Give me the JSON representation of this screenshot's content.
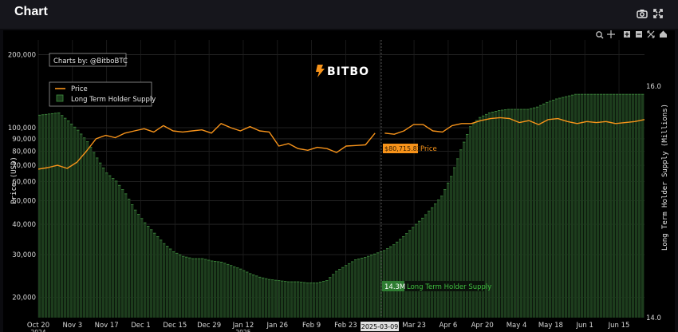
{
  "app": {
    "title": "Chart",
    "camera_icon": "camera-icon",
    "fullscreen_icon": "fullscreen-icon"
  },
  "toolbar": {
    "icons": [
      "zoom-icon",
      "pan-icon",
      "zoom-in-icon",
      "zoom-out-icon",
      "autoscale-icon",
      "home-icon"
    ]
  },
  "watermark": "BITBO",
  "credit": "Charts by: @BitboBTC",
  "legend": {
    "price": "Price",
    "supply": "Long Term Holder Supply"
  },
  "hover": {
    "x_label": "2025-03-09",
    "price_value": "$80,715.83",
    "price_name": "Price",
    "supply_value": "14.3M",
    "supply_name": "Long Term Holder Supply"
  },
  "colors": {
    "price": "#f7931a",
    "supply_fill": "#1d3d1d",
    "supply_line": "#3f8f3f",
    "label_bg": "#f7931a",
    "label_supply_bg": "#2e7d32"
  },
  "chart_data": {
    "type": "line",
    "title": "",
    "xlabel": "",
    "ylabel_left": "Price (USD)",
    "ylabel_right": "Long Term Holder Supply (Millions)",
    "y_left_scale": "log",
    "y_left_range": [
      16500,
      230000
    ],
    "y_right_range": [
      14.0,
      16.4
    ],
    "x_ticks": [
      "Oct 20",
      "Nov 3",
      "Nov 17",
      "Dec 1",
      "Dec 15",
      "Dec 29",
      "Jan 12",
      "Jan 26",
      "Feb 9",
      "Feb 23",
      "Mar 9",
      "Mar 23",
      "Apr 6",
      "Apr 20",
      "May 4",
      "May 18",
      "Jun 1",
      "Jun 15"
    ],
    "x_tick_sublabels": [
      "2024",
      "",
      "",
      "",
      "",
      "",
      "2025",
      "",
      "",
      "",
      "",
      "",
      "",
      "",
      "",
      "",
      "",
      ""
    ],
    "y_left_ticks": [
      20000,
      30000,
      40000,
      50000,
      60000,
      70000,
      80000,
      90000,
      100000,
      200000
    ],
    "y_left_tick_labels": [
      "20,000",
      "30,000",
      "40,000",
      "50,000",
      "60,000",
      "70,000",
      "80,000",
      "90,000",
      "100,000",
      "200,000"
    ],
    "y_right_ticks": [
      14.0,
      16.0
    ],
    "y_right_tick_labels": [
      "14.0",
      "16.0"
    ],
    "grid": true,
    "legend_position": "top-left",
    "series": [
      {
        "name": "Price",
        "kind": "line",
        "axis": "left",
        "x": [
          0,
          1,
          2,
          3,
          4,
          5,
          6,
          7,
          8,
          9,
          10,
          11,
          12,
          13,
          14,
          15,
          16,
          17,
          18,
          19,
          20,
          21,
          22,
          23,
          24,
          25,
          26,
          27,
          28,
          29,
          30,
          31,
          32,
          33,
          34,
          35
        ],
        "values": [
          67500,
          68500,
          70000,
          68000,
          72000,
          80000,
          90000,
          93000,
          91000,
          95000,
          97000,
          99000,
          96000,
          102000,
          97000,
          96000,
          97000,
          98000,
          95000,
          104000,
          100000,
          97000,
          101000,
          97000,
          96000,
          84000,
          86000,
          82000,
          80700,
          83000,
          82000,
          79000,
          84000,
          84500,
          85000,
          95000
        ]
      },
      {
        "name": "Price",
        "kind": "line",
        "axis": "left",
        "x": [
          36,
          37,
          38,
          39,
          40,
          41,
          42,
          43,
          44,
          45,
          46,
          47,
          48,
          49,
          50,
          51,
          52,
          53,
          54,
          55,
          56,
          57,
          58,
          59,
          60,
          61,
          62,
          63
        ],
        "values": [
          95000,
          94000,
          97000,
          103000,
          103000,
          97000,
          96000,
          102000,
          104000,
          104000,
          107000,
          109000,
          110000,
          109000,
          105000,
          107000,
          103000,
          108000,
          109000,
          106000,
          104000,
          106000,
          105000,
          106000,
          104000,
          105000,
          106000,
          108000
        ]
      },
      {
        "name": "Long Term Holder Supply",
        "kind": "area",
        "axis": "right",
        "x": [
          0,
          1,
          2,
          3,
          4,
          5,
          6,
          7,
          8,
          9,
          10,
          11,
          12,
          13,
          14,
          15,
          16,
          17,
          18,
          19,
          20,
          21,
          22,
          23,
          24,
          25,
          26,
          27,
          28,
          29,
          30,
          31,
          32,
          33,
          34,
          35,
          36,
          37,
          38,
          39,
          40,
          41,
          42,
          43,
          44,
          45,
          46,
          47,
          48,
          49,
          50,
          51,
          52,
          53,
          54,
          55,
          56,
          57,
          58,
          59,
          60,
          61,
          62,
          63
        ],
        "values": [
          15.75,
          15.76,
          15.77,
          15.7,
          15.62,
          15.52,
          15.38,
          15.25,
          15.18,
          15.07,
          14.93,
          14.82,
          14.73,
          14.64,
          14.57,
          14.53,
          14.51,
          14.51,
          14.49,
          14.48,
          14.45,
          14.42,
          14.38,
          14.35,
          14.33,
          14.32,
          14.31,
          14.31,
          14.3,
          14.3,
          14.32,
          14.4,
          14.45,
          14.5,
          14.52,
          14.55,
          14.58,
          14.63,
          14.7,
          14.78,
          14.86,
          14.95,
          15.05,
          15.22,
          15.45,
          15.65,
          15.73,
          15.77,
          15.79,
          15.8,
          15.8,
          15.8,
          15.82,
          15.86,
          15.89,
          15.91,
          15.93,
          15.93,
          15.93,
          15.93,
          15.93,
          15.93,
          15.93,
          15.93
        ]
      }
    ]
  }
}
